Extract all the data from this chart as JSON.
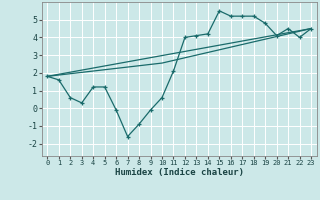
{
  "xlabel": "Humidex (Indice chaleur)",
  "xlim": [
    -0.5,
    23.5
  ],
  "ylim": [
    -2.7,
    6.0
  ],
  "xticks": [
    0,
    1,
    2,
    3,
    4,
    5,
    6,
    7,
    8,
    9,
    10,
    11,
    12,
    13,
    14,
    15,
    16,
    17,
    18,
    19,
    20,
    21,
    22,
    23
  ],
  "yticks": [
    -2,
    -1,
    0,
    1,
    2,
    3,
    4,
    5
  ],
  "bg_color": "#cce8e8",
  "line_color": "#1a6b6b",
  "grid_color": "#ffffff",
  "line1_x": [
    0,
    1,
    2,
    3,
    4,
    5,
    6,
    7,
    8,
    9,
    10,
    11,
    12,
    13,
    14,
    15,
    16,
    17,
    18,
    19,
    20,
    21,
    22,
    23
  ],
  "line1_y": [
    1.8,
    1.6,
    0.6,
    0.3,
    1.2,
    1.2,
    -0.1,
    -1.6,
    -0.9,
    -0.1,
    0.6,
    2.1,
    4.0,
    4.1,
    4.2,
    5.5,
    5.2,
    5.2,
    5.2,
    4.8,
    4.1,
    4.5,
    4.0,
    4.5
  ],
  "line2_x": [
    0,
    23
  ],
  "line2_y": [
    1.8,
    4.5
  ],
  "line3_x": [
    0,
    10,
    23
  ],
  "line3_y": [
    1.8,
    2.55,
    4.5
  ]
}
